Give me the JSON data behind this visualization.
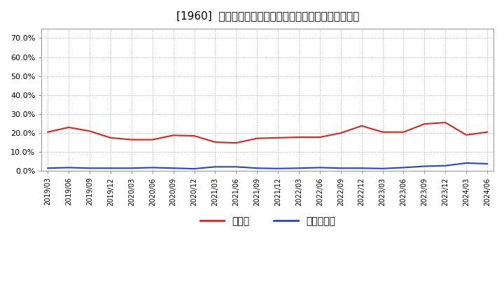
{
  "title": "[1960]  現顔金、有利子負債の総資産に対する比率の推移",
  "legend_cash": "現顔金",
  "legend_debt": "有利子負債",
  "cash_color": "#dd2222",
  "debt_color": "#2244cc",
  "bg_color": "#ffffff",
  "plot_bg_color": "#ffffff",
  "grid_color": "#aaaaaa",
  "dates": [
    "2019/03",
    "2019/06",
    "2019/09",
    "2019/12",
    "2020/03",
    "2020/06",
    "2020/09",
    "2020/12",
    "2021/03",
    "2021/06",
    "2021/09",
    "2021/12",
    "2022/03",
    "2022/06",
    "2022/09",
    "2022/12",
    "2023/03",
    "2023/06",
    "2023/09",
    "2023/12",
    "2024/03",
    "2024/06"
  ],
  "cash_values": [
    0.205,
    0.23,
    0.21,
    0.175,
    0.165,
    0.165,
    0.188,
    0.185,
    0.152,
    0.148,
    0.172,
    0.175,
    0.178,
    0.178,
    0.2,
    0.238,
    0.205,
    0.205,
    0.248,
    0.255,
    0.19,
    0.205
  ],
  "debt_values": [
    0.015,
    0.018,
    0.015,
    0.015,
    0.015,
    0.018,
    0.015,
    0.012,
    0.022,
    0.022,
    0.015,
    0.013,
    0.015,
    0.018,
    0.015,
    0.015,
    0.013,
    0.018,
    0.025,
    0.028,
    0.042,
    0.038
  ],
  "ylim": [
    0.0,
    0.75
  ],
  "yticks": [
    0.0,
    0.1,
    0.2,
    0.3,
    0.4,
    0.5,
    0.6,
    0.7
  ]
}
